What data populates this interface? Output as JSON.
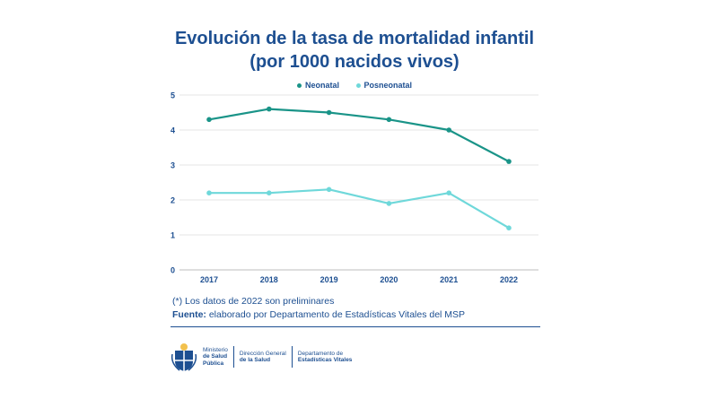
{
  "title_line1": "Evolución de la tasa de mortalidad infantil",
  "title_line2": "(por 1000 nacidos vivos)",
  "notes": {
    "line1": "(*) Los datos de 2022 son preliminares",
    "source_label": "Fuente:",
    "source_text": "elaborado por Departamento de Estadísticas Vitales del MSP"
  },
  "footer": {
    "ministry_l1": "Ministerio",
    "ministry_l2": "de Salud",
    "ministry_l3": "Pública",
    "dir_l1": "Dirección General",
    "dir_l2": "de la Salud",
    "dept_l1": "Departamento de",
    "dept_l2": "Estadísticas Vitales"
  },
  "colors": {
    "neonatal": "#1a9488",
    "posneonatal": "#6fd8da",
    "text": "#1d4f91",
    "grid": "#e6e6e6"
  },
  "chart_data": {
    "type": "line",
    "x": [
      "2017",
      "2018",
      "2019",
      "2020",
      "2021",
      "2022"
    ],
    "yticks": [
      "0",
      "1",
      "2",
      "3",
      "4",
      "5"
    ],
    "ylim": [
      0,
      5
    ],
    "grid": true,
    "legend_position": "top-center",
    "series": [
      {
        "name": "Neonatal",
        "values": [
          4.3,
          4.6,
          4.5,
          4.3,
          4.0,
          3.1
        ]
      },
      {
        "name": "Posneonatal",
        "values": [
          2.2,
          2.2,
          2.3,
          1.9,
          2.2,
          1.2
        ]
      }
    ]
  }
}
